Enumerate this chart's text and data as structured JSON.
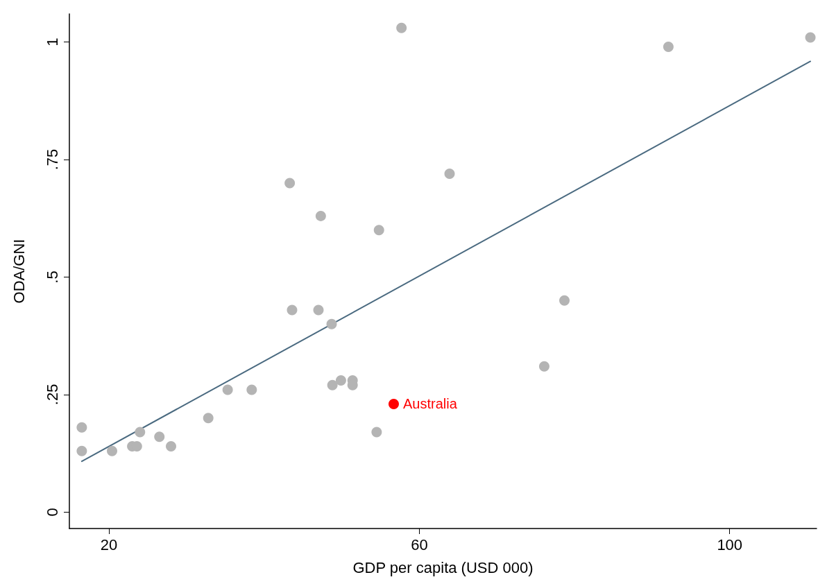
{
  "chart_data": {
    "type": "scatter",
    "xlabel": "GDP per capita (USD 000)",
    "ylabel": "ODA/GNI",
    "xlim": [
      14.9,
      111.2
    ],
    "xticks": [
      20,
      60,
      100
    ],
    "ylim": [
      -0.035,
      1.06
    ],
    "yticks": [
      0,
      {
        "value": 0.25,
        "label": ".25"
      },
      {
        "value": 0.5,
        "label": ".5"
      },
      {
        "value": 0.75,
        "label": ".75"
      },
      1
    ],
    "grid": false,
    "legend": false,
    "marker": "circle",
    "series": [
      {
        "color": "#b4b4b4",
        "x": [
          16.5,
          16.5,
          20.4,
          23.0,
          23.6,
          24.0,
          26.5,
          28.0,
          32.8,
          35.3,
          38.4,
          43.3,
          43.6,
          47.0,
          47.3,
          48.7,
          48.8,
          49.9,
          51.4,
          51.4,
          54.5,
          54.8,
          57.7,
          63.9,
          76.1,
          78.7,
          92.1,
          110.4
        ],
        "values": [
          0.18,
          0.13,
          0.13,
          0.14,
          0.14,
          0.17,
          0.16,
          0.14,
          0.2,
          0.26,
          0.26,
          0.7,
          0.43,
          0.43,
          0.63,
          0.4,
          0.27,
          0.28,
          0.28,
          0.27,
          0.17,
          0.6,
          1.03,
          0.72,
          0.31,
          0.45,
          0.99,
          1.01
        ]
      },
      {
        "name": "Australia",
        "color": "#ff0000",
        "x": [
          56.7
        ],
        "values": [
          0.23
        ]
      },
      {
        "type": "line",
        "color": "#4a6a80",
        "line_style": "solid",
        "marker": "none",
        "x": [
          16.5,
          110.4
        ],
        "values": [
          0.108,
          0.959
        ]
      }
    ]
  }
}
